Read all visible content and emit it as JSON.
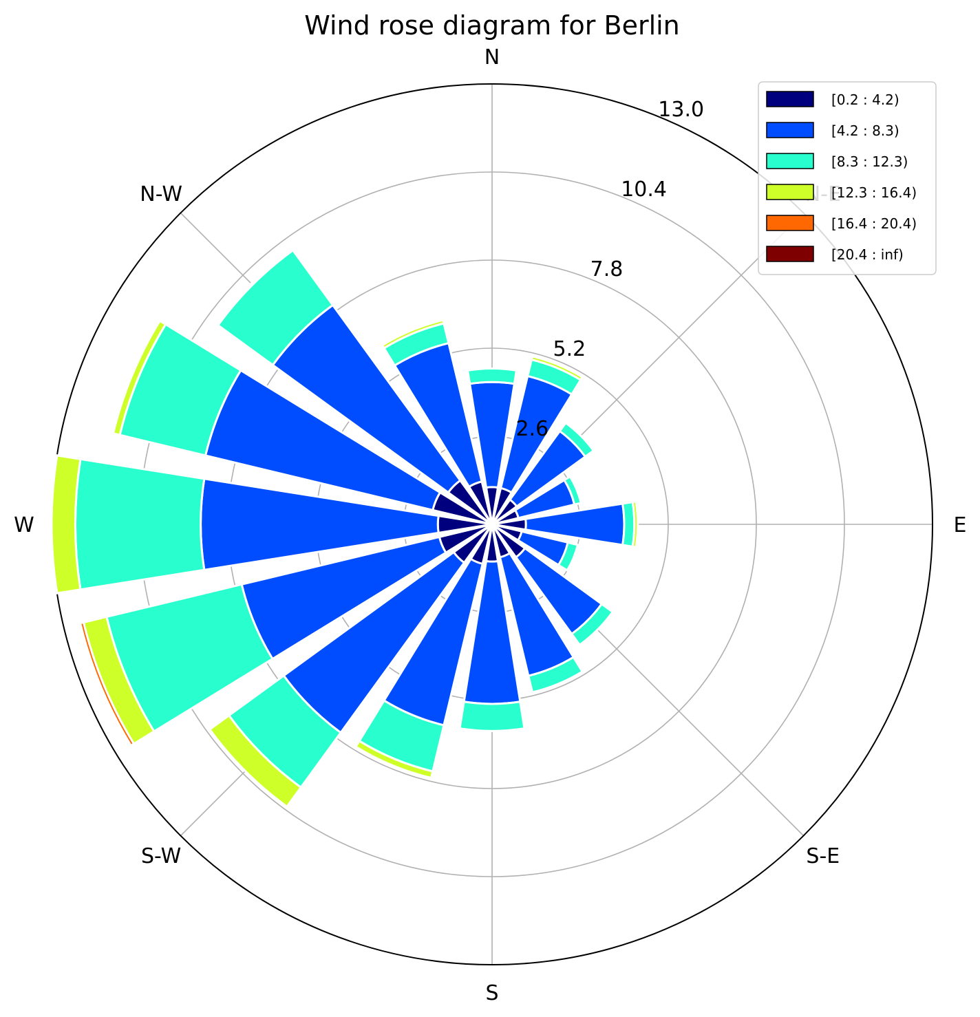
{
  "chart_data": {
    "type": "windrose",
    "title": "Wind rose diagram for Berlin",
    "direction_labels": [
      "E",
      "N-E",
      "N",
      "N-W",
      "W",
      "S-W",
      "S",
      "S-E"
    ],
    "r_ticks": [
      "2.6",
      "5.2",
      "7.8",
      "10.4",
      "13.0"
    ],
    "r_tick_values": [
      2.6,
      5.2,
      7.8,
      10.4,
      13.0
    ],
    "r_max": 13.0,
    "grid": true,
    "legend_position": "top-right",
    "bins": [
      {
        "label": "[0.2 : 4.2)",
        "color": "#00007f"
      },
      {
        "label": "[4.2 : 8.3)",
        "color": "#004cff"
      },
      {
        "label": "[8.3 : 12.3)",
        "color": "#29ffce"
      },
      {
        "label": "[12.3 : 16.4)",
        "color": "#ceff29"
      },
      {
        "label": "[16.4 : 20.4)",
        "color": "#ff6800"
      },
      {
        "label": "[20.4 : inf)",
        "color": "#7f0000"
      }
    ],
    "sectors": [
      {
        "direction": 0,
        "cumulative": [
          1.0,
          3.9,
          4.2,
          4.3,
          4.3,
          4.3
        ]
      },
      {
        "direction": 22.5,
        "cumulative": [
          0.8,
          2.5,
          2.7,
          2.7,
          2.7,
          2.7
        ]
      },
      {
        "direction": 45,
        "cumulative": [
          0.9,
          3.4,
          3.7,
          3.7,
          3.7,
          3.7
        ]
      },
      {
        "direction": 67.5,
        "cumulative": [
          1.1,
          4.5,
          5.0,
          5.1,
          5.1,
          5.1
        ]
      },
      {
        "direction": 90,
        "cumulative": [
          1.1,
          4.2,
          4.6,
          4.6,
          4.6,
          4.6
        ]
      },
      {
        "direction": 112.5,
        "cumulative": [
          1.3,
          5.5,
          6.1,
          6.2,
          6.2,
          6.2
        ]
      },
      {
        "direction": 135,
        "cumulative": [
          1.6,
          8.0,
          10.0,
          10.05,
          10.05,
          10.05
        ]
      },
      {
        "direction": 157.5,
        "cumulative": [
          1.8,
          8.7,
          11.3,
          11.5,
          11.5,
          11.5
        ]
      },
      {
        "direction": 180,
        "cumulative": [
          1.6,
          8.6,
          12.3,
          13.0,
          13.05,
          13.05
        ]
      },
      {
        "direction": 202.5,
        "cumulative": [
          1.6,
          7.6,
          11.7,
          12.4,
          12.5,
          12.5
        ]
      },
      {
        "direction": 225,
        "cumulative": [
          1.4,
          7.6,
          9.6,
          10.3,
          10.3,
          10.3
        ]
      },
      {
        "direction": 247.5,
        "cumulative": [
          1.2,
          6.1,
          7.5,
          7.7,
          7.7,
          7.7
        ]
      },
      {
        "direction": 270,
        "cumulative": [
          1.1,
          5.3,
          6.1,
          6.1,
          6.1,
          6.1
        ]
      },
      {
        "direction": 292.5,
        "cumulative": [
          1.0,
          4.6,
          5.1,
          5.1,
          5.1,
          5.1
        ]
      },
      {
        "direction": 315,
        "cumulative": [
          1.2,
          4.0,
          4.4,
          4.4,
          4.4,
          4.4
        ]
      },
      {
        "direction": 337.5,
        "cumulative": [
          0.9,
          2.3,
          2.6,
          2.6,
          2.6,
          2.6
        ]
      }
    ]
  }
}
